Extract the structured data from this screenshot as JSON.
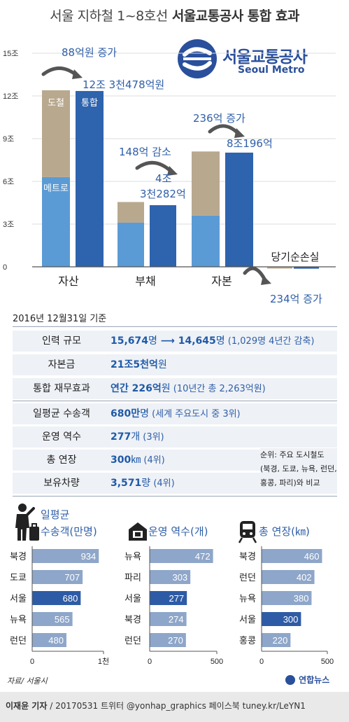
{
  "title": {
    "light": "서울 지하철 1~8호선",
    "bold": "서울교통공사 통합 효과"
  },
  "logo": {
    "name_ko": "서울교통공사",
    "name_en": "Seoul Metro",
    "color": "#2a4f9c",
    "icon": "seoul-metro-logo"
  },
  "chart_data": [
    {
      "type": "bar",
      "y_ticks": [
        "15조",
        "12조",
        "9조",
        "6조",
        "3조",
        "0"
      ],
      "ylim": [
        -0.15,
        15
      ],
      "categories": [
        "자산",
        "부채",
        "자본",
        "당기순손실"
      ],
      "series": [
        {
          "name": "메트로",
          "values": [
            6.3,
            3.1,
            3.6,
            -0.12
          ],
          "color": "#5b9bd5"
        },
        {
          "name": "도철",
          "values": [
            6.1,
            1.45,
            4.5,
            0
          ],
          "color": "#b8a88e"
        },
        {
          "name": "통합",
          "values": [
            12.3478,
            4.3282,
            8.0196,
            -0.13
          ],
          "color": "#2e63ad"
        }
      ],
      "annotations": [
        {
          "change": "88억원 증가",
          "total": "12조 3천478억원"
        },
        {
          "change": "148억 감소",
          "total_line1": "4조",
          "total_line2": "3천282억"
        },
        {
          "change": "236억 증가",
          "total": "8조196억"
        },
        {
          "change": "234억 증가"
        }
      ]
    },
    {
      "type": "bar",
      "orientation": "horizontal",
      "title_line1": "일평균",
      "title_line2": "수송객(만명)",
      "categories": [
        "북경",
        "도쿄",
        "서울",
        "뉴욕",
        "런던"
      ],
      "values": [
        934,
        707,
        680,
        565,
        480
      ],
      "highlight": "서울",
      "xlim": [
        0,
        1000
      ],
      "x_ticks": [
        "0",
        "1천"
      ],
      "icon": "person-luggage-icon"
    },
    {
      "type": "bar",
      "orientation": "horizontal",
      "title": "운영 역수(개)",
      "categories": [
        "뉴욕",
        "파리",
        "서울",
        "북경",
        "런던"
      ],
      "values": [
        472,
        303,
        277,
        274,
        270
      ],
      "highlight": "서울",
      "xlim": [
        0,
        500
      ],
      "x_ticks": [
        "0",
        "500"
      ],
      "icon": "station-icon"
    },
    {
      "type": "bar",
      "orientation": "horizontal",
      "title": "총 연장(㎞)",
      "categories": [
        "북경",
        "런던",
        "뉴욕",
        "서울",
        "홍콩"
      ],
      "values": [
        460,
        402,
        380,
        300,
        220
      ],
      "highlight": "서울",
      "xlim": [
        0,
        500
      ],
      "x_ticks": [
        "0",
        "500"
      ],
      "icon": "train-icon"
    }
  ],
  "date_label": "2016년 12월31일 기준",
  "info1": [
    {
      "label": "인력 규모",
      "a": "15,674",
      "a_unit": "명",
      "b": "14,645",
      "b_unit": "명",
      "note": " (1,029명 4년간 감축)"
    },
    {
      "label": "자본금",
      "a": "21조5천억",
      "a_unit": "원"
    },
    {
      "label": "통합 재무효과",
      "a": "연간 226억",
      "a_unit": "원",
      "note": " (10년간 총 2,263억원)"
    }
  ],
  "info2": [
    {
      "label": "일평균 수송객",
      "a": "680만",
      "a_unit": "명",
      "note": " (세계 주요도시 중 3위)"
    },
    {
      "label": "운영 역수",
      "a": "277",
      "a_unit": "개",
      "note": " (3위)"
    },
    {
      "label": "총 연장",
      "a": "300",
      "a_unit": "㎞",
      "note": " (4위)"
    },
    {
      "label": "보유차량",
      "a": "3,571",
      "a_unit": "량",
      "note": " (4위)"
    }
  ],
  "info_note": [
    "순위: 주요 도시철도",
    "(북경, 도쿄, 뉴욕, 런던,",
    "홍콩, 파리)와 비교"
  ],
  "source": "자료/ 서울시",
  "agency": "연합뉴스",
  "byline": {
    "name": "이재윤 기자",
    "rest": " / 20170531  트위터 @yonhap_graphics  페이스북 tuney.kr/LeYN1"
  }
}
